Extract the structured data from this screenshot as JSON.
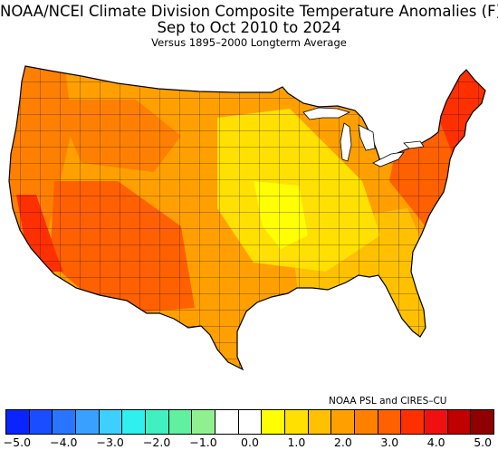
{
  "title_line1": "NOAA/NCEI Climate Division Composite Temperature Anomalies (F)",
  "title_line2": "Sep to Oct 2010 to 2024",
  "subtitle": "Versus 1895–2000 Longterm Average",
  "credit": "NOAA PSL and CIRES–CU",
  "legend": {
    "colors": [
      "#0a24ff",
      "#1a4dff",
      "#2a75ff",
      "#3aa0ff",
      "#3ccfff",
      "#30efef",
      "#40f0c0",
      "#60f0a0",
      "#90f090",
      "#ffffff",
      "#ffffff",
      "#ffff00",
      "#ffe000",
      "#ffc000",
      "#ffa000",
      "#ff8000",
      "#ff6000",
      "#ff3000",
      "#f01010",
      "#c00000",
      "#900000"
    ],
    "ticks": [
      {
        "label": "−5.0",
        "value": -5.0
      },
      {
        "label": "−4.0",
        "value": -4.0
      },
      {
        "label": "−3.0",
        "value": -3.0
      },
      {
        "label": "−2.0",
        "value": -2.0
      },
      {
        "label": "−1.0",
        "value": -1.0
      },
      {
        "label": "0.0",
        "value": 0.0
      },
      {
        "label": "1.0",
        "value": 1.0
      },
      {
        "label": "2.0",
        "value": 2.0
      },
      {
        "label": "3.0",
        "value": 3.0
      },
      {
        "label": "4.0",
        "value": 4.0
      },
      {
        "label": "5.0",
        "value": 5.0
      }
    ],
    "min": -5.0,
    "max": 5.0
  },
  "map_colors": {
    "base": "#ffa000",
    "west_coast": "#ff8000",
    "southern_california": "#ff3000",
    "southwest": "#ff6000",
    "northeast": "#ff3000",
    "midwest_yellow": "#ffe000",
    "plains_yellow": "#ffff00",
    "southeast": "#ffc000"
  }
}
